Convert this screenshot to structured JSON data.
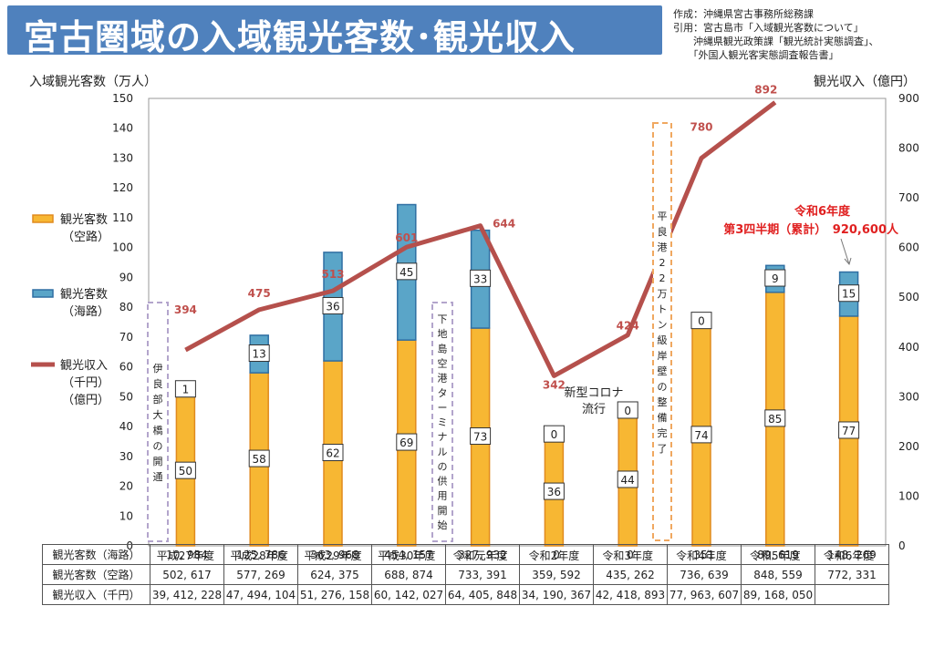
{
  "header": {
    "title": "宮古圏域の入域観光客数･観光収入",
    "source_lines": [
      "作成：沖縄県宮古事務所総務課",
      "引用：宮古島市「入域観光客数について」",
      "　　沖縄県観光政策課「観光統計実態調査」、",
      "　　「外国人観光客実態調査報告書」"
    ]
  },
  "chart_data": {
    "type": "bar",
    "stacked": true,
    "categories": [
      "平成27年度",
      "平成28年度",
      "平成29年度",
      "平成30年度",
      "令和元年度",
      "令和2年度",
      "令和3年度",
      "令和4年度",
      "令和5年度",
      "令和6年度"
    ],
    "series": [
      {
        "name": "観光客数（空路）",
        "type": "bar",
        "axis": "left",
        "color": "#f7b733",
        "values": [
          50,
          58,
          62,
          69,
          73,
          36,
          44,
          74,
          85,
          77
        ],
        "labels": [
          "50",
          "58",
          "62",
          "69",
          "73",
          "36",
          "44",
          "74",
          "85",
          "77"
        ]
      },
      {
        "name": "観光客数（海路）",
        "type": "bar",
        "axis": "left",
        "color": "#5aa5c8",
        "values": [
          1.1,
          12.6,
          36.4,
          45.4,
          32.8,
          0,
          0,
          0.04,
          9,
          14.8
        ],
        "labels": [
          "1",
          "13",
          "36",
          "45",
          "33",
          "0",
          "0",
          "0",
          "9",
          "15"
        ]
      },
      {
        "name": "観光収入（千円）（億円）",
        "type": "line",
        "axis": "right",
        "color": "#b5504c",
        "values": [
          394,
          475,
          513,
          601,
          644,
          342,
          424,
          780,
          892,
          null
        ],
        "labels": [
          "394",
          "475",
          "513",
          "601",
          "644",
          "342",
          "424",
          "780",
          "892",
          ""
        ]
      }
    ],
    "y_left": {
      "label": "入域観光客数（万人）",
      "min": 0,
      "max": 150,
      "ticks": [
        0,
        10,
        20,
        30,
        40,
        50,
        60,
        70,
        80,
        90,
        100,
        110,
        120,
        130,
        140,
        150
      ]
    },
    "y_right": {
      "label": "観光収入（億円）",
      "min": 0,
      "max": 900,
      "ticks": [
        0,
        100,
        200,
        300,
        400,
        500,
        600,
        700,
        800,
        900
      ]
    },
    "legend": [
      {
        "line1": "観光客数",
        "line2": "（空路）",
        "kind": "air"
      },
      {
        "line1": "観光客数",
        "line2": "（海路）",
        "kind": "sea"
      },
      {
        "line1": "観光収入",
        "line2": "（千円）",
        "line3": "（億円）",
        "kind": "line"
      }
    ],
    "annotations": {
      "irabu": "伊良部大橋の開通",
      "shimoji": "下地島空港ターミナルの供用開始",
      "hirara": "平良港22万トン級岸壁の整備完了",
      "corona_line1": "新型コロナ",
      "corona_line2": "流行",
      "r6_line1": "令和6年度",
      "r6_line2": "第3四半期（累計）　920,600人"
    },
    "grid": false
  },
  "table": {
    "rows": [
      {
        "label": "観光客数（海路）",
        "values": [
          "10, 984",
          "125, 786",
          "363, 968",
          "454, 157",
          "327, 932",
          "0",
          "0",
          "351",
          "89, 619",
          "148, 269"
        ]
      },
      {
        "label": "観光客数（空路）",
        "values": [
          "502, 617",
          "577, 269",
          "624, 375",
          "688, 874",
          "733, 391",
          "359, 592",
          "435, 262",
          "736, 639",
          "848, 559",
          "772, 331"
        ]
      },
      {
        "label": "観光収入（千円）",
        "values": [
          "39, 412, 228",
          "47, 494, 104",
          "51, 276, 158",
          "60, 142, 027",
          "64, 405, 848",
          "34, 190, 367",
          "42, 418, 893",
          "77, 963, 607",
          "89, 168, 050",
          ""
        ]
      }
    ]
  }
}
